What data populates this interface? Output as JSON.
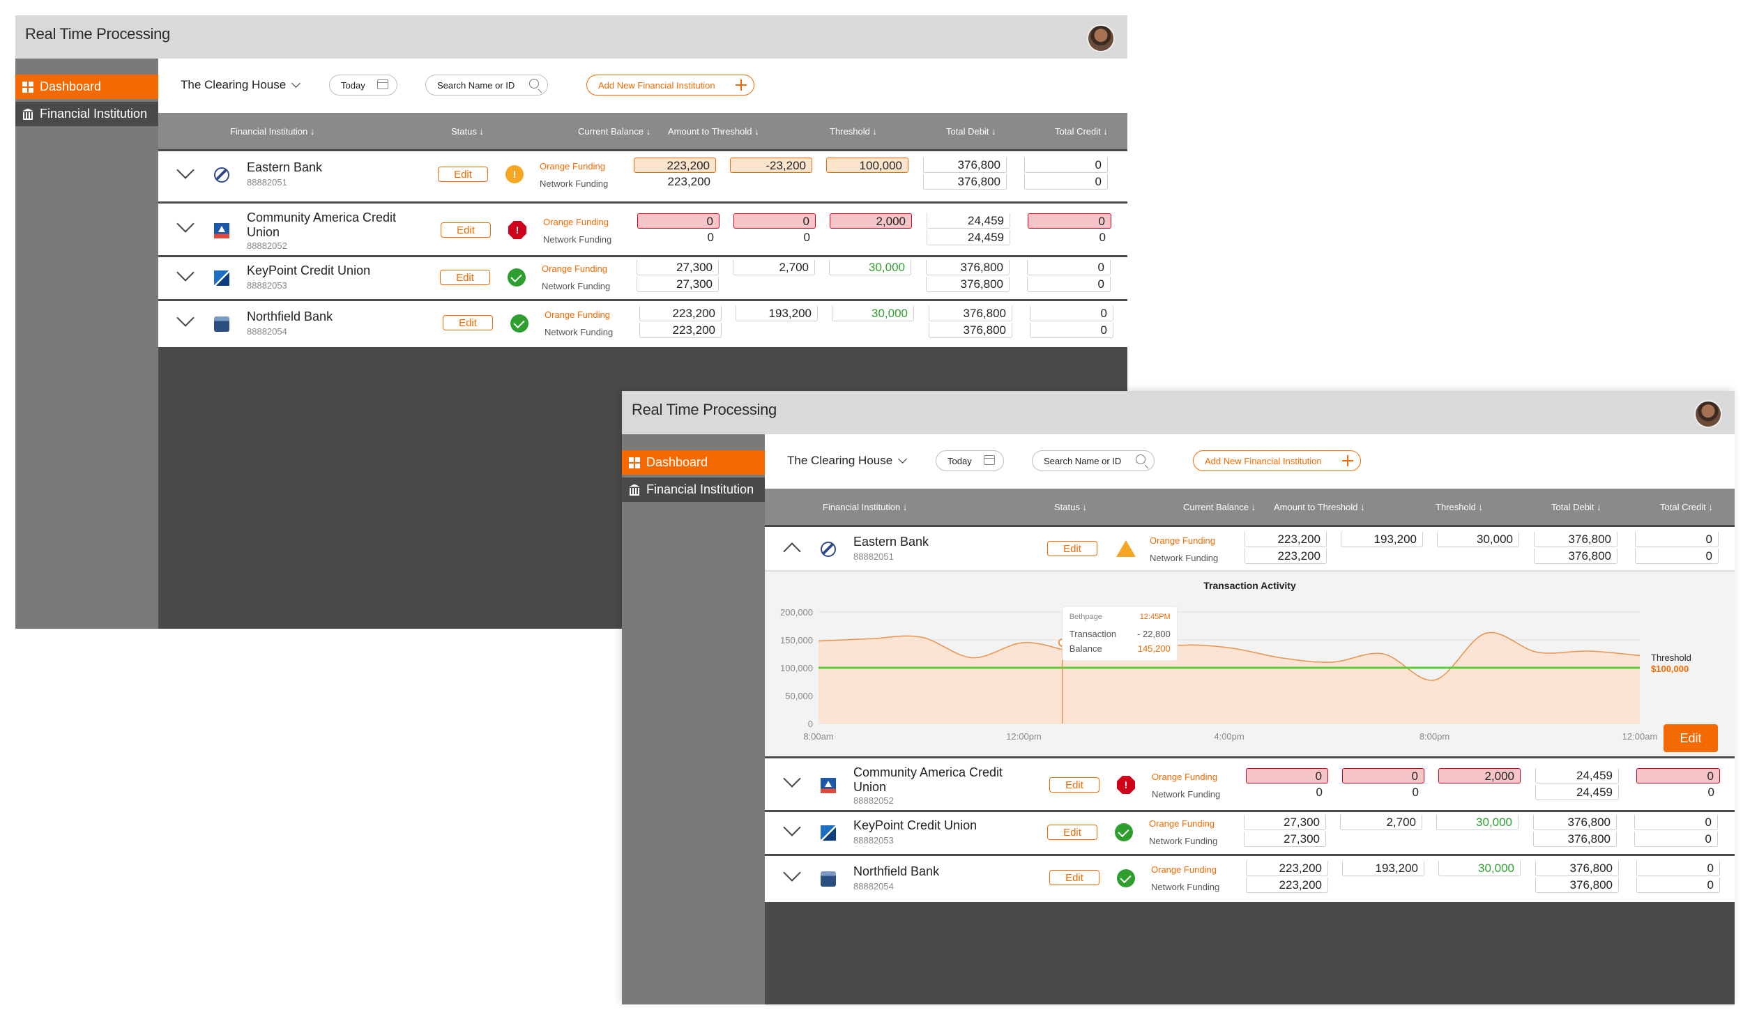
{
  "app_title": "Real Time Processing",
  "sidebar": {
    "items": [
      {
        "label": "Dashboard",
        "icon": "grid-icon"
      },
      {
        "label": "Financial Institution",
        "icon": "bank-icon"
      }
    ]
  },
  "toolbar": {
    "organization": "The Clearing House",
    "date_label": "Today",
    "search_placeholder": "Search Name or ID",
    "add_label": "Add New Financial Institution"
  },
  "columns": [
    "Financial Institution",
    "Status",
    "Current Balance",
    "Amount to Threshold",
    "Threshold",
    "Total Debit",
    "Total Credit"
  ],
  "labels": {
    "orange_funding": "Orange Funding",
    "network_funding": "Network Funding",
    "edit": "Edit"
  },
  "screen1": {
    "rows": [
      {
        "name": "Eastern Bank",
        "id": "88882051",
        "status": "warning",
        "status_glyph": "!",
        "cb_orange": "223,200",
        "cb_network": "223,200",
        "att": "-23,200",
        "threshold": "100,000",
        "debit_orange": "376,800",
        "debit_network": "376,800",
        "credit_orange": "0",
        "credit_network": "0"
      },
      {
        "name": "Community America Credit Union",
        "id": "88882052",
        "status": "error",
        "status_glyph": "!",
        "cb_orange": "0",
        "cb_network": "0",
        "att_orange": "0",
        "att_network": "0",
        "threshold": "2,000",
        "debit_orange": "24,459",
        "debit_network": "24,459",
        "credit_orange": "0",
        "credit_network": "0"
      },
      {
        "name": "KeyPoint Credit Union",
        "id": "88882053",
        "status": "ok",
        "cb_orange": "27,300",
        "cb_network": "27,300",
        "att": "2,700",
        "threshold": "30,000",
        "debit_orange": "376,800",
        "debit_network": "376,800",
        "credit_orange": "0",
        "credit_network": "0"
      },
      {
        "name": "Northfield Bank",
        "id": "88882054",
        "status": "ok",
        "cb_orange": "223,200",
        "cb_network": "223,200",
        "att": "193,200",
        "threshold": "30,000",
        "debit_orange": "376,800",
        "debit_network": "376,800",
        "credit_orange": "0",
        "credit_network": "0"
      }
    ]
  },
  "screen2": {
    "rows": [
      {
        "name": "Eastern Bank",
        "id": "88882051",
        "status": "warning",
        "cb_orange": "223,200",
        "cb_network": "223,200",
        "att": "193,200",
        "threshold": "30,000",
        "debit_orange": "376,800",
        "debit_network": "376,800",
        "credit_orange": "0",
        "credit_network": "0"
      },
      {
        "name": "Community America Credit Union",
        "id": "88882052",
        "status": "error",
        "status_glyph": "!",
        "cb_orange": "0",
        "cb_network": "0",
        "att_orange": "0",
        "att_network": "0",
        "threshold": "2,000",
        "debit_orange": "24,459",
        "debit_network": "24,459",
        "credit_orange": "0",
        "credit_network": "0"
      },
      {
        "name": "KeyPoint Credit Union",
        "id": "88882053",
        "status": "ok",
        "cb_orange": "27,300",
        "cb_network": "27,300",
        "att": "2,700",
        "threshold": "30,000",
        "debit_orange": "376,800",
        "debit_network": "376,800",
        "credit_orange": "0",
        "credit_network": "0"
      },
      {
        "name": "Northfield Bank",
        "id": "88882054",
        "status": "ok",
        "cb_orange": "223,200",
        "cb_network": "223,200",
        "att": "193,200",
        "threshold": "30,000",
        "debit_orange": "376,800",
        "debit_network": "376,800",
        "credit_orange": "0",
        "credit_network": "0"
      }
    ],
    "chart_edit_label": "Edit"
  },
  "chart_data": {
    "type": "area",
    "title": "Transaction Activity",
    "x_ticks": [
      "8:00am",
      "12:00pm",
      "4:00pm",
      "8:00pm",
      "12:00am"
    ],
    "y_ticks": [
      "200,000",
      "150,000",
      "100,000",
      "50,000",
      "0"
    ],
    "ylim": [
      0,
      200000
    ],
    "x_hours": [
      8,
      9,
      10,
      11,
      12,
      13,
      14,
      15,
      16,
      17,
      18,
      19,
      20,
      21,
      22,
      23,
      24
    ],
    "values": [
      148000,
      152000,
      155000,
      118000,
      145200,
      128000,
      120000,
      140000,
      136000,
      118000,
      110000,
      125000,
      78000,
      162000,
      128000,
      130000,
      122000
    ],
    "threshold": {
      "value": 100000,
      "label": "Threshold",
      "value_label": "$100,000"
    },
    "tooltip": {
      "location": "Bethpage",
      "time": "12:45PM",
      "transaction_label": "Transaction",
      "transaction": "- 22,800",
      "balance_label": "Balance",
      "balance": "145,200"
    },
    "colors": {
      "area": "#fbe0cc",
      "line": "#e8934f",
      "threshold": "#5ccc3a",
      "accent": "#f46a00"
    }
  }
}
